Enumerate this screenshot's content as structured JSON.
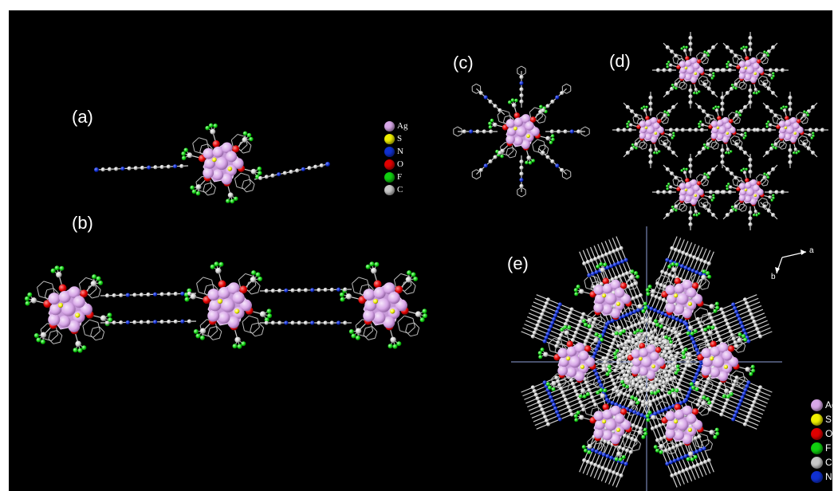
{
  "panels": {
    "a": "(a)",
    "b": "(b)",
    "c": "(c)",
    "d": "(d)",
    "e": "(e)"
  },
  "legend_top": [
    {
      "label": "Ag",
      "color": "#d8a8e8"
    },
    {
      "label": "S",
      "color": "#f0f000"
    },
    {
      "label": "N",
      "color": "#1030d0"
    },
    {
      "label": "O",
      "color": "#e00000"
    },
    {
      "label": "F",
      "color": "#10d010"
    },
    {
      "label": "C",
      "color": "#c8c8c8"
    }
  ],
  "legend_bottom": [
    {
      "label": "Ag",
      "color": "#d8a8e8"
    },
    {
      "label": "S",
      "color": "#f0f000"
    },
    {
      "label": "O",
      "color": "#e00000"
    },
    {
      "label": "F",
      "color": "#10d010"
    },
    {
      "label": "C",
      "color": "#c8c8c8"
    },
    {
      "label": "N",
      "color": "#1030d0"
    }
  ],
  "axes": {
    "a": "a",
    "b": "b"
  },
  "colors": {
    "silver": "#d8a8e8",
    "sulfur": "#f0f000",
    "nitrogen": "#1030d0",
    "oxygen": "#e00000",
    "fluorine": "#10d010",
    "carbon": "#c8c8c8",
    "background": "#000000"
  }
}
